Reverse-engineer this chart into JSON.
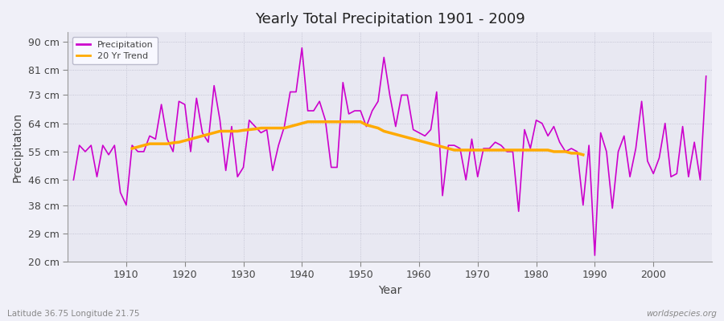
{
  "title": "Yearly Total Precipitation 1901 - 2009",
  "xlabel": "Year",
  "ylabel": "Precipitation",
  "subtitle_left": "Latitude 36.75 Longitude 21.75",
  "subtitle_right": "worldspecies.org",
  "bg_color": "#f0f0f8",
  "plot_bg_color": "#e8e8f2",
  "line_color": "#cc00cc",
  "trend_color": "#ffaa00",
  "yticks": [
    20,
    29,
    38,
    46,
    55,
    64,
    73,
    81,
    90
  ],
  "ytick_labels": [
    "20 cm",
    "29 cm",
    "38 cm",
    "46 cm",
    "55 cm",
    "64 cm",
    "73 cm",
    "81 cm",
    "90 cm"
  ],
  "xmin": 1901,
  "xmax": 2009,
  "ymin": 20,
  "ymax": 93,
  "years": [
    1901,
    1902,
    1903,
    1904,
    1905,
    1906,
    1907,
    1908,
    1909,
    1910,
    1911,
    1912,
    1913,
    1914,
    1915,
    1916,
    1917,
    1918,
    1919,
    1920,
    1921,
    1922,
    1923,
    1924,
    1925,
    1926,
    1927,
    1928,
    1929,
    1930,
    1931,
    1932,
    1933,
    1934,
    1935,
    1936,
    1937,
    1938,
    1939,
    1940,
    1941,
    1942,
    1943,
    1944,
    1945,
    1946,
    1947,
    1948,
    1949,
    1950,
    1951,
    1952,
    1953,
    1954,
    1955,
    1956,
    1957,
    1958,
    1959,
    1960,
    1961,
    1962,
    1963,
    1964,
    1965,
    1966,
    1967,
    1968,
    1969,
    1970,
    1971,
    1972,
    1973,
    1974,
    1975,
    1976,
    1977,
    1978,
    1979,
    1980,
    1981,
    1982,
    1983,
    1984,
    1985,
    1986,
    1987,
    1988,
    1989,
    1990,
    1991,
    1992,
    1993,
    1994,
    1995,
    1996,
    1997,
    1998,
    1999,
    2000,
    2001,
    2002,
    2003,
    2004,
    2005,
    2006,
    2007,
    2008,
    2009
  ],
  "precipitation": [
    46,
    57,
    55,
    57,
    47,
    57,
    54,
    57,
    42,
    38,
    57,
    55,
    55,
    60,
    59,
    70,
    59,
    55,
    71,
    70,
    55,
    72,
    61,
    58,
    76,
    65,
    49,
    63,
    47,
    50,
    65,
    63,
    61,
    62,
    49,
    57,
    63,
    74,
    74,
    88,
    68,
    68,
    71,
    65,
    50,
    50,
    77,
    67,
    68,
    68,
    63,
    68,
    71,
    85,
    73,
    63,
    73,
    73,
    62,
    61,
    60,
    62,
    74,
    41,
    57,
    57,
    56,
    46,
    59,
    47,
    56,
    56,
    58,
    57,
    55,
    55,
    36,
    62,
    56,
    65,
    64,
    60,
    63,
    58,
    55,
    56,
    55,
    38,
    57,
    22,
    61,
    55,
    37,
    55,
    60,
    47,
    56,
    71,
    52,
    48,
    53,
    64,
    47,
    48,
    63,
    47,
    58,
    46,
    79
  ],
  "trend": [
    null,
    null,
    null,
    null,
    null,
    null,
    null,
    null,
    null,
    null,
    56,
    56.5,
    57,
    57.5,
    57.5,
    57.5,
    57.5,
    57.8,
    58,
    58.5,
    59,
    59.5,
    60,
    60.5,
    61,
    61.5,
    61.5,
    61.5,
    61.5,
    61.8,
    62,
    62.2,
    62.5,
    62.5,
    62.5,
    62.5,
    62.5,
    63,
    63.5,
    64,
    64.5,
    64.5,
    64.5,
    64.5,
    64.5,
    64.5,
    64.5,
    64.5,
    64.5,
    64.5,
    63.5,
    63,
    62.5,
    61.5,
    61,
    60.5,
    60,
    59.5,
    59,
    58.5,
    58,
    57.5,
    57,
    56.5,
    56,
    55.5,
    55.5,
    55.5,
    55.5,
    55.5,
    55.5,
    55.5,
    55.5,
    55.5,
    55.5,
    55.5,
    55.5,
    55.5,
    55.5,
    55.5,
    55.5,
    55.5,
    55,
    55,
    55,
    54.5,
    54.5,
    54,
    null,
    null,
    null,
    null,
    null,
    null,
    null,
    null,
    null,
    null,
    null,
    null,
    null,
    null,
    null,
    null,
    null,
    null,
    null
  ]
}
